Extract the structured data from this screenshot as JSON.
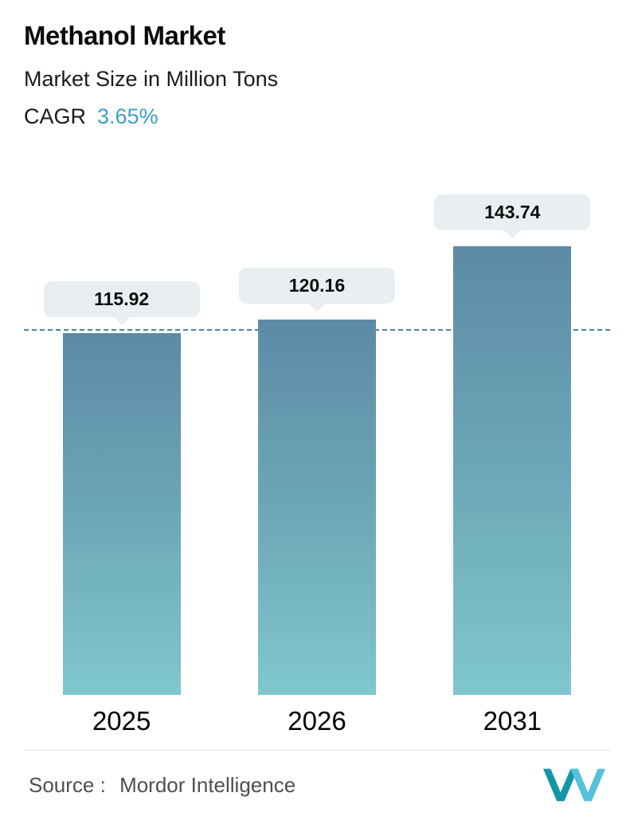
{
  "header": {
    "title": "Methanol Market",
    "subtitle": "Market Size in Million Tons",
    "cagr_label": "CAGR",
    "cagr_value": "3.65%"
  },
  "chart_data": {
    "type": "bar",
    "title": "Methanol Market",
    "subtitle": "Market Size in Million Tons",
    "cagr": "3.65%",
    "categories": [
      "2025",
      "2026",
      "2031"
    ],
    "values": [
      115.92,
      120.16,
      143.74
    ],
    "value_labels": [
      "115.92",
      "120.16",
      "143.74"
    ],
    "ylabel": "Market Size in Million Tons",
    "ylim": [
      0,
      165
    ],
    "reference_line": 115.92,
    "grid": "off",
    "legend": "none",
    "colors": {
      "bar_gradient_top": "#5d8aa6",
      "bar_gradient_bottom": "#80c7ce",
      "reference_line": "#4a82a6",
      "callout_bg": "#e9eef1",
      "cagr_accent": "#3d9fc7"
    }
  },
  "footer": {
    "source_label": "Source :",
    "source_value": "Mordor Intelligence",
    "logo": "mordor-intelligence-logo"
  }
}
